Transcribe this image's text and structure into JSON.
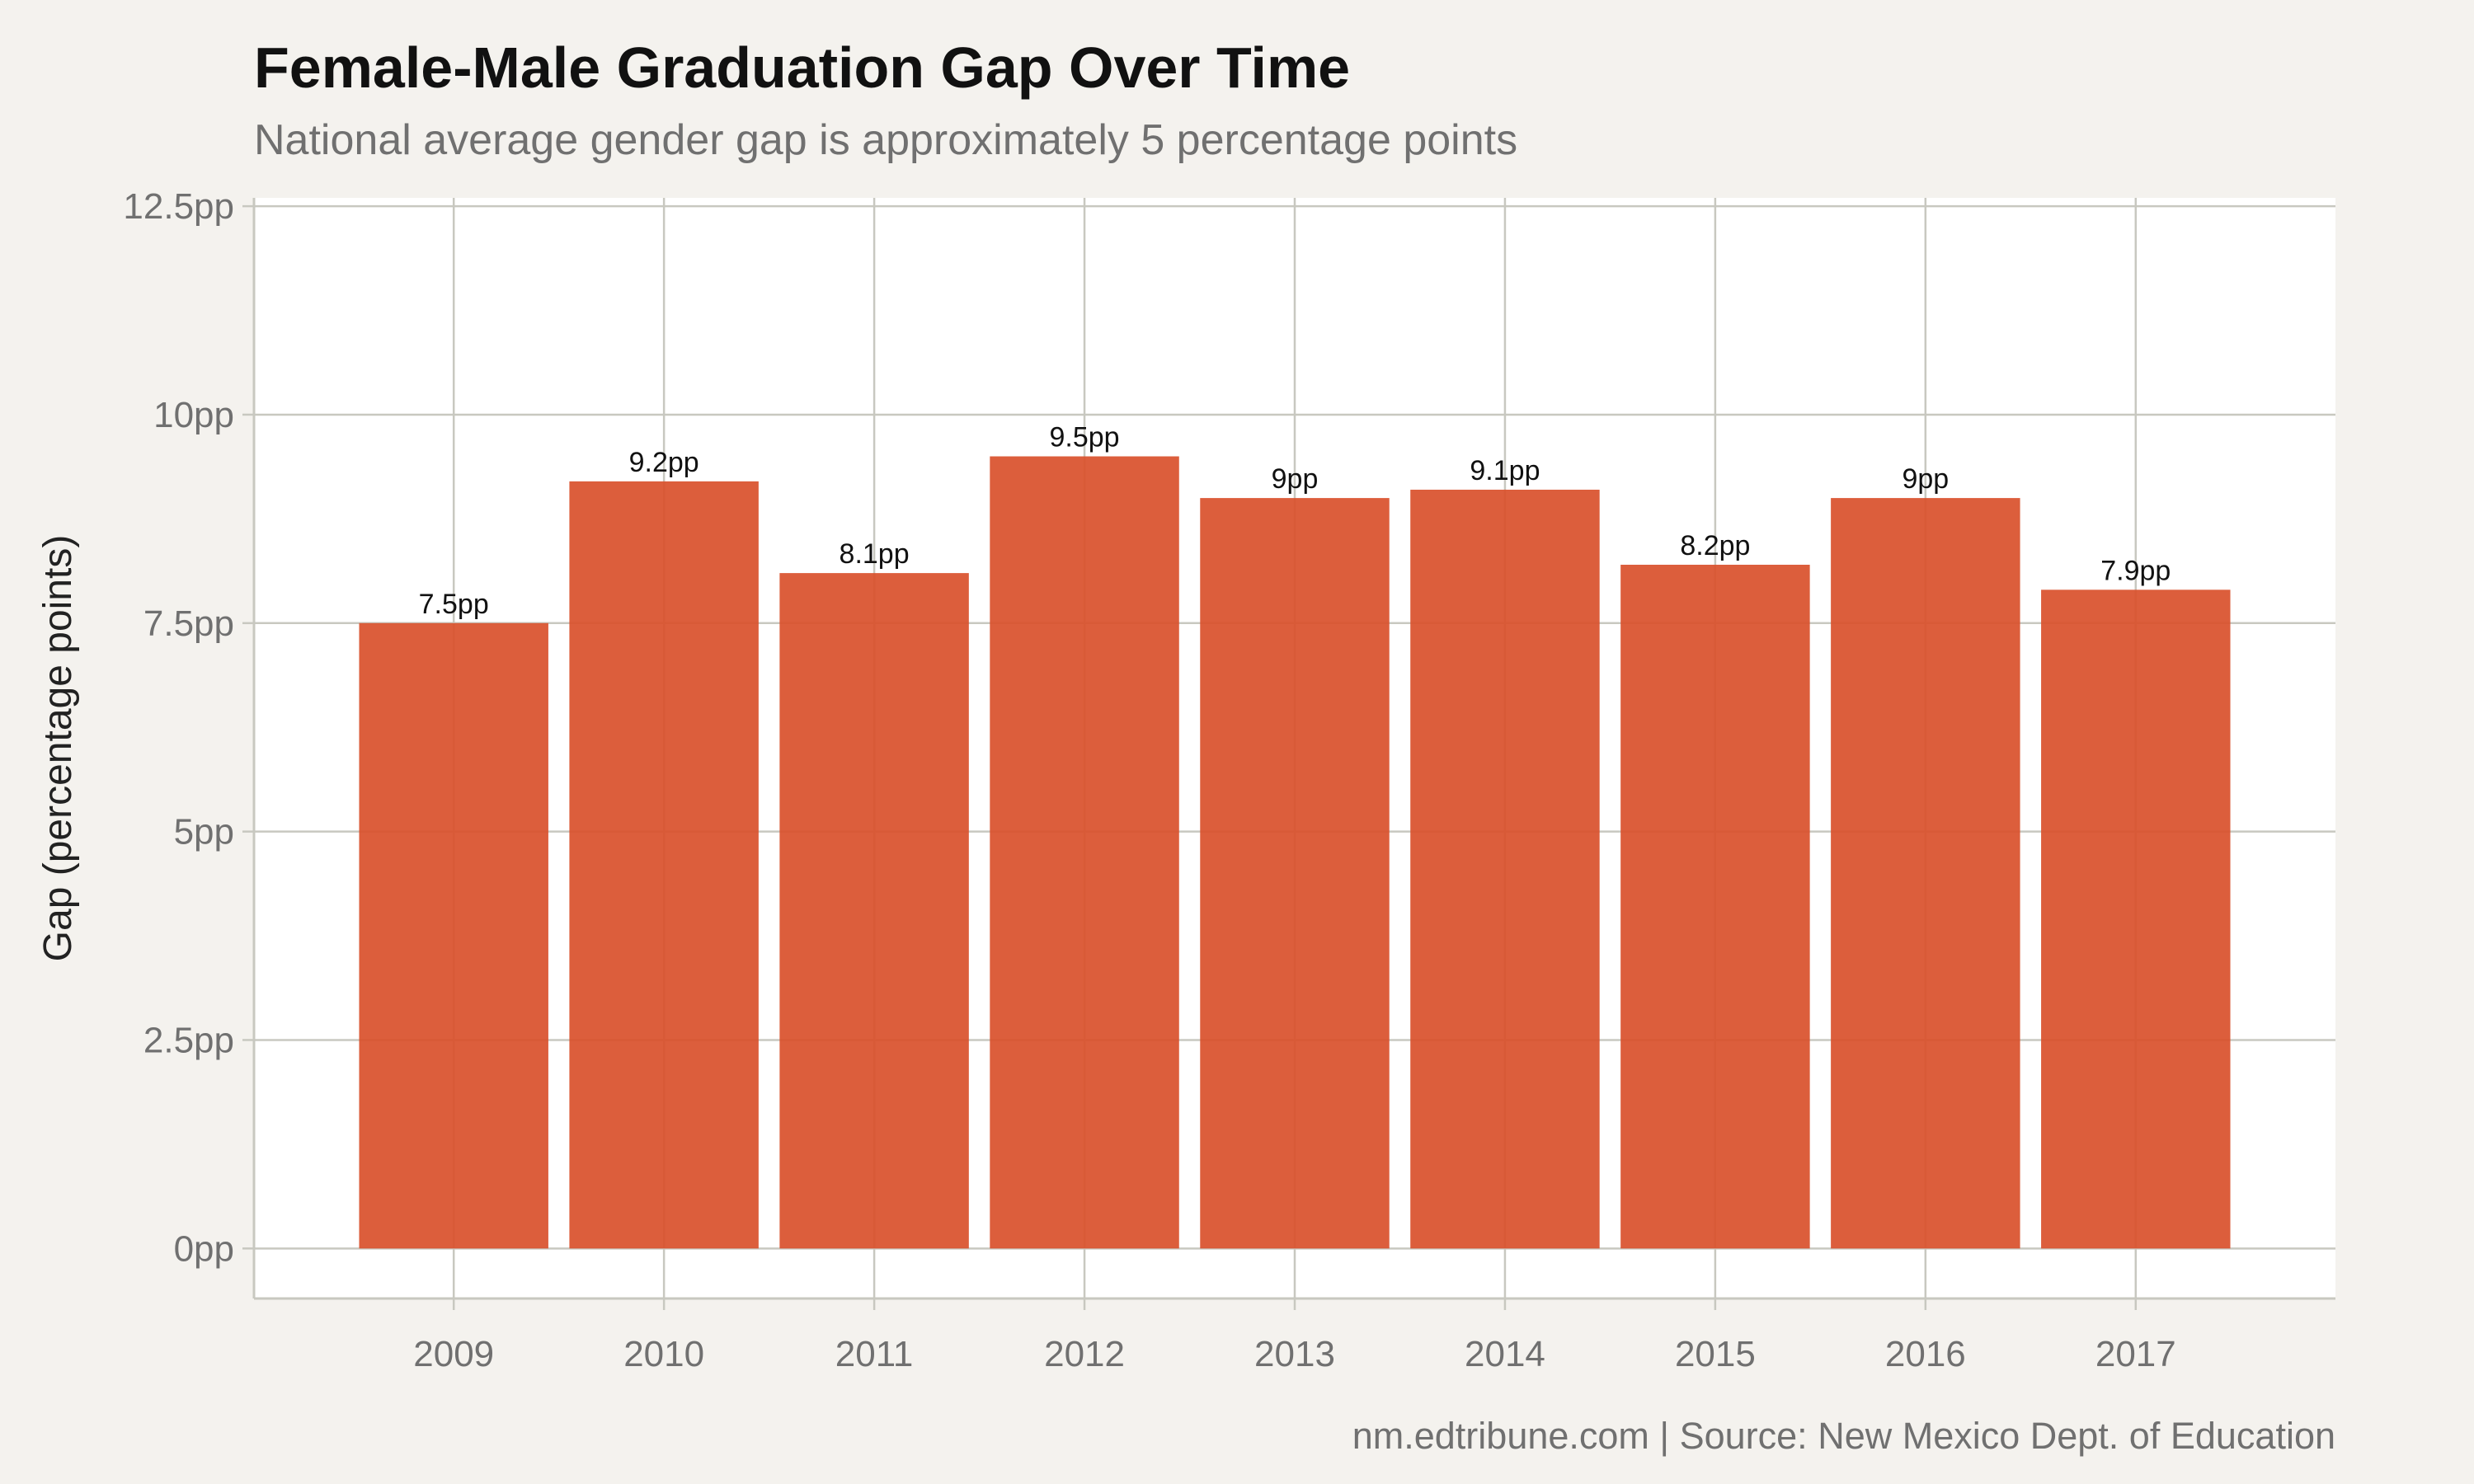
{
  "chart_data": {
    "type": "bar",
    "title": "Female-Male Graduation Gap Over Time",
    "subtitle": "National average gender gap is approximately 5 percentage points",
    "caption": "nm.edtribune.com | Source: New Mexico Dept. of Education",
    "xlabel": "",
    "ylabel": "Gap (percentage points)",
    "categories": [
      "2009",
      "2010",
      "2011",
      "2012",
      "2013",
      "2014",
      "2015",
      "2016",
      "2017"
    ],
    "values": [
      7.5,
      9.2,
      8.1,
      9.5,
      9.0,
      9.1,
      8.2,
      9.0,
      7.9
    ],
    "data_labels": [
      "7.5pp",
      "9.2pp",
      "8.1pp",
      "9.5pp",
      "9pp",
      "9.1pp",
      "8.2pp",
      "9pp",
      "7.9pp"
    ],
    "yticks": [
      0,
      2.5,
      5,
      7.5,
      10,
      12.5
    ],
    "ytick_labels": [
      "0pp",
      "2.5pp",
      "5pp",
      "7.5pp",
      "10pp",
      "12.5pp"
    ],
    "ylim": [
      -0.6,
      12.6
    ],
    "grid": true,
    "legend": "none",
    "colors": {
      "bar": "#d9502b",
      "background": "#f4f2ee",
      "panel": "#ffffff",
      "grid": "#c8c8c0",
      "axis_text": "#707070"
    }
  }
}
